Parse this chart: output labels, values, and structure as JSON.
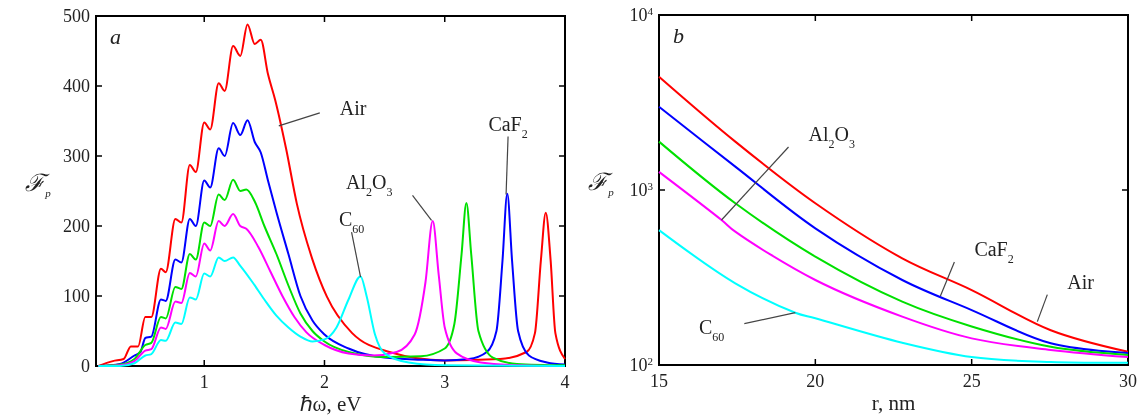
{
  "chart_data": [
    {
      "type": "line",
      "xlabel": "ℏω, eV",
      "ylabel": "ℱ$_{p}$",
      "xlim": [
        0.1,
        4
      ],
      "ylim": [
        0,
        500
      ],
      "xticks": [
        1,
        2,
        3,
        4
      ],
      "yticks": [
        0,
        100,
        200,
        300,
        400,
        500
      ],
      "series": [
        {
          "color": "#ff0000",
          "x": [
            0.12,
            0.24,
            0.33,
            0.39,
            0.45,
            0.51,
            0.56,
            0.64,
            0.68,
            0.76,
            0.81,
            0.88,
            0.93,
            1.0,
            1.05,
            1.12,
            1.17,
            1.24,
            1.3,
            1.36,
            1.42,
            1.47,
            1.53,
            1.59,
            1.68,
            1.77,
            1.9,
            2.02,
            2.23,
            2.54,
            3.0,
            3.46,
            3.68,
            3.75,
            3.8,
            3.84,
            3.88,
            3.92,
            4.0
          ],
          "values": [
            0,
            7,
            10,
            28,
            28,
            70,
            70,
            139,
            134,
            210,
            205,
            287,
            277,
            348,
            338,
            404,
            393,
            457,
            443,
            488,
            460,
            466,
            417,
            380,
            311,
            232,
            152,
            99,
            47,
            20,
            8,
            10,
            20,
            47,
            152,
            219,
            152,
            47,
            10
          ]
        },
        {
          "color": "#0000ff",
          "x": [
            0.12,
            0.3,
            0.42,
            0.47,
            0.51,
            0.56,
            0.64,
            0.68,
            0.76,
            0.81,
            0.88,
            0.93,
            1.0,
            1.05,
            1.12,
            1.17,
            1.24,
            1.3,
            1.36,
            1.42,
            1.47,
            1.53,
            1.6,
            1.7,
            1.8,
            1.9,
            2.0,
            2.2,
            2.5,
            2.8,
            3.0,
            3.2,
            3.35,
            3.43,
            3.48,
            3.52,
            3.56,
            3.61,
            3.7,
            3.85,
            4.0
          ],
          "values": [
            0,
            3,
            15,
            20,
            40,
            42,
            95,
            93,
            152,
            148,
            210,
            200,
            265,
            255,
            311,
            300,
            347,
            330,
            351,
            320,
            305,
            265,
            220,
            160,
            100,
            65,
            45,
            25,
            12,
            9,
            8,
            10,
            20,
            50,
            150,
            246,
            150,
            50,
            15,
            5,
            2
          ]
        },
        {
          "color": "#00e000",
          "x": [
            0.12,
            0.3,
            0.42,
            0.51,
            0.56,
            0.64,
            0.68,
            0.76,
            0.81,
            0.88,
            0.93,
            1.0,
            1.05,
            1.12,
            1.17,
            1.24,
            1.3,
            1.35,
            1.42,
            1.5,
            1.6,
            1.7,
            1.8,
            1.9,
            2.0,
            2.2,
            2.5,
            2.8,
            3.0,
            3.08,
            3.14,
            3.18,
            3.22,
            3.28,
            3.4,
            3.6,
            4.0
          ],
          "values": [
            0,
            2,
            10,
            30,
            33,
            70,
            68,
            113,
            110,
            160,
            152,
            205,
            200,
            245,
            237,
            266,
            250,
            252,
            235,
            200,
            160,
            115,
            75,
            50,
            35,
            20,
            13,
            14,
            25,
            60,
            160,
            233,
            160,
            50,
            12,
            3,
            1
          ]
        },
        {
          "color": "#ff00ff",
          "x": [
            0.12,
            0.3,
            0.42,
            0.51,
            0.56,
            0.64,
            0.68,
            0.76,
            0.81,
            0.88,
            0.93,
            1.0,
            1.05,
            1.12,
            1.17,
            1.24,
            1.3,
            1.35,
            1.45,
            1.55,
            1.65,
            1.75,
            1.85,
            2.0,
            2.2,
            2.4,
            2.6,
            2.75,
            2.84,
            2.9,
            2.95,
            3.0,
            3.1,
            3.3,
            3.6,
            4.0
          ],
          "values": [
            0,
            1,
            7,
            22,
            24,
            55,
            53,
            92,
            90,
            133,
            128,
            175,
            165,
            207,
            200,
            217,
            200,
            196,
            170,
            135,
            100,
            70,
            48,
            30,
            18,
            15,
            20,
            45,
            120,
            207,
            130,
            55,
            18,
            5,
            1,
            0
          ]
        },
        {
          "color": "#00ffff",
          "x": [
            0.12,
            0.3,
            0.42,
            0.51,
            0.56,
            0.64,
            0.68,
            0.76,
            0.81,
            0.88,
            0.93,
            1.0,
            1.05,
            1.12,
            1.17,
            1.24,
            1.3,
            1.4,
            1.5,
            1.6,
            1.7,
            1.8,
            1.9,
            2.0,
            2.1,
            2.2,
            2.3,
            2.35,
            2.42,
            2.5,
            2.7,
            3.0,
            4.0
          ],
          "values": [
            0,
            0,
            4,
            15,
            17,
            37,
            36,
            62,
            60,
            98,
            95,
            132,
            128,
            155,
            150,
            155,
            143,
            120,
            95,
            72,
            55,
            42,
            35,
            38,
            55,
            95,
            128,
            100,
            45,
            18,
            5,
            1,
            0
          ]
        }
      ],
      "annotations": [
        "a",
        {
          "text": "Air",
          "x": 1.62,
          "y": 343
        },
        {
          "text": "C$_{60}$",
          "x": 2.3,
          "y": 127
        },
        {
          "text": "Al$_{2}$O$_{3}$",
          "x": 2.89,
          "y": 208
        },
        {
          "text": "CaF$_{2}$",
          "x": 3.51,
          "y": 245
        }
      ]
    },
    {
      "type": "line",
      "xlabel": "r, nm",
      "ylabel": "ℱ$_{p}$",
      "log": true,
      "xlim": [
        15,
        30
      ],
      "ylim": [
        100,
        10000
      ],
      "xticks": [
        15,
        20,
        25,
        30
      ],
      "yticks": [
        {
          "value": 100,
          "label": "10$^{2}$"
        },
        {
          "value": 1000,
          "label": "10$^{3}$"
        },
        {
          "value": 10000,
          "label": "10$^{4}$"
        }
      ],
      "series": [
        {
          "color": "#ff0000",
          "x": [
            15,
            17.44,
            20,
            22.78,
            25,
            27.53,
            30
          ],
          "values": [
            4440,
            1890,
            840,
            407,
            268,
            158,
            119
          ]
        },
        {
          "color": "#0000ff",
          "x": [
            15,
            17.44,
            20,
            22.78,
            25,
            27.53,
            30
          ],
          "values": [
            2990,
            1360,
            604,
            306,
            206,
            133,
            117
          ]
        },
        {
          "color": "#00e000",
          "x": [
            15,
            17.44,
            20,
            22.78,
            25,
            27.53,
            30
          ],
          "values": [
            1890,
            840,
            416,
            230,
            166,
            127,
            114
          ]
        },
        {
          "color": "#ff00ff",
          "x": [
            15,
            17,
            17.44,
            20,
            22.78,
            25,
            27.53,
            30
          ],
          "values": [
            1270,
            674,
            578,
            306,
            189,
            142,
            122,
            111
          ]
        },
        {
          "color": "#00ffff",
          "x": [
            15,
            17.44,
            19.36,
            20,
            22.78,
            25,
            27.53,
            30
          ],
          "values": [
            590,
            293,
            199,
            185,
            134,
            111,
            104,
            103
          ]
        }
      ],
      "annotations": [
        "b",
        {
          "text": "Al$_{2}$O$_{3}$",
          "x": 17,
          "y": 674
        },
        {
          "text": "C$_{60}$",
          "x": 19.36,
          "y": 199
        },
        {
          "text": "CaF$_{2}$",
          "x": 24,
          "y": 248
        },
        {
          "text": "Air",
          "x": 27.1,
          "y": 177
        }
      ]
    }
  ]
}
